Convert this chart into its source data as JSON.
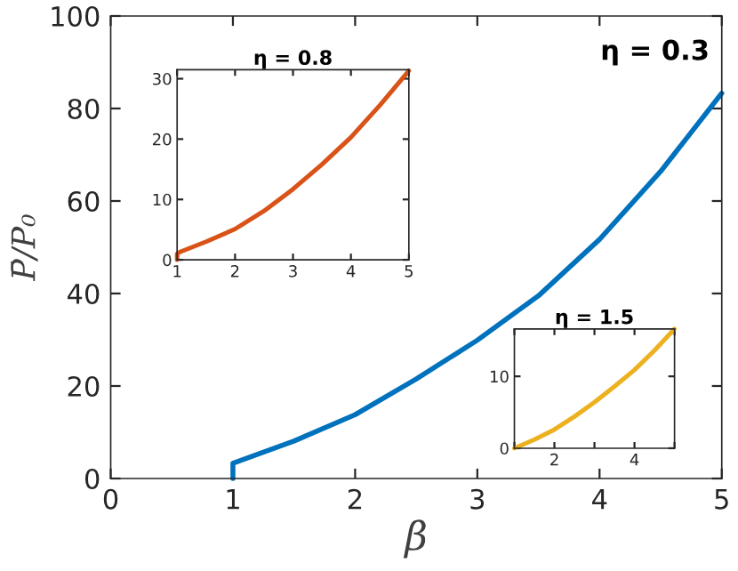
{
  "chart_data": [
    {
      "type": "line",
      "xlabel": "β",
      "ylabel": "P̄/P₀",
      "xlim": [
        0,
        5
      ],
      "ylim": [
        0,
        100
      ],
      "xticks": [
        0,
        1,
        2,
        3,
        4,
        5
      ],
      "yticks": [
        0,
        20,
        40,
        60,
        80,
        100
      ],
      "grid": false,
      "legend": false,
      "series": [
        {
          "name": "η = 0.3",
          "color": "#0072bd",
          "x": [
            1,
            1,
            1.5,
            2,
            2.5,
            3,
            3.5,
            4,
            4.5,
            5
          ],
          "values": [
            0,
            3.3,
            8.1,
            13.8,
            21.5,
            29.9,
            39.5,
            51.7,
            66.4,
            83.3
          ]
        }
      ]
    },
    {
      "type": "line",
      "title": "η = 0.8",
      "xlim": [
        1,
        5
      ],
      "ylim": [
        0,
        31.5
      ],
      "xticks": [
        1,
        2,
        3,
        4,
        5
      ],
      "yticks": [
        0,
        10,
        20,
        30
      ],
      "grid": false,
      "legend": false,
      "series": [
        {
          "color": "#d95319",
          "x": [
            1,
            1,
            1.05,
            1.5,
            2,
            2.5,
            3,
            3.5,
            4,
            4.5,
            5
          ],
          "values": [
            0,
            1.0,
            1.3,
            3.0,
            5.1,
            8.1,
            11.7,
            15.8,
            20.3,
            25.6,
            31.3
          ]
        }
      ]
    },
    {
      "type": "line",
      "title": "η = 1.5",
      "xlim": [
        1,
        5
      ],
      "ylim": [
        0,
        16.6
      ],
      "xticks": [
        {
          "value": 1,
          "label": null
        },
        2,
        {
          "value": 3,
          "label": null
        },
        4,
        {
          "value": 5,
          "label": null
        }
      ],
      "yticks": [
        0,
        10
      ],
      "grid": false,
      "legend": false,
      "series": [
        {
          "color": "#edb120",
          "x": [
            1,
            1.5,
            2,
            2.5,
            3,
            3.5,
            4,
            4.5,
            5
          ],
          "values": [
            0,
            1.2,
            2.6,
            4.4,
            6.4,
            8.6,
            10.9,
            13.6,
            16.6
          ]
        }
      ]
    }
  ]
}
